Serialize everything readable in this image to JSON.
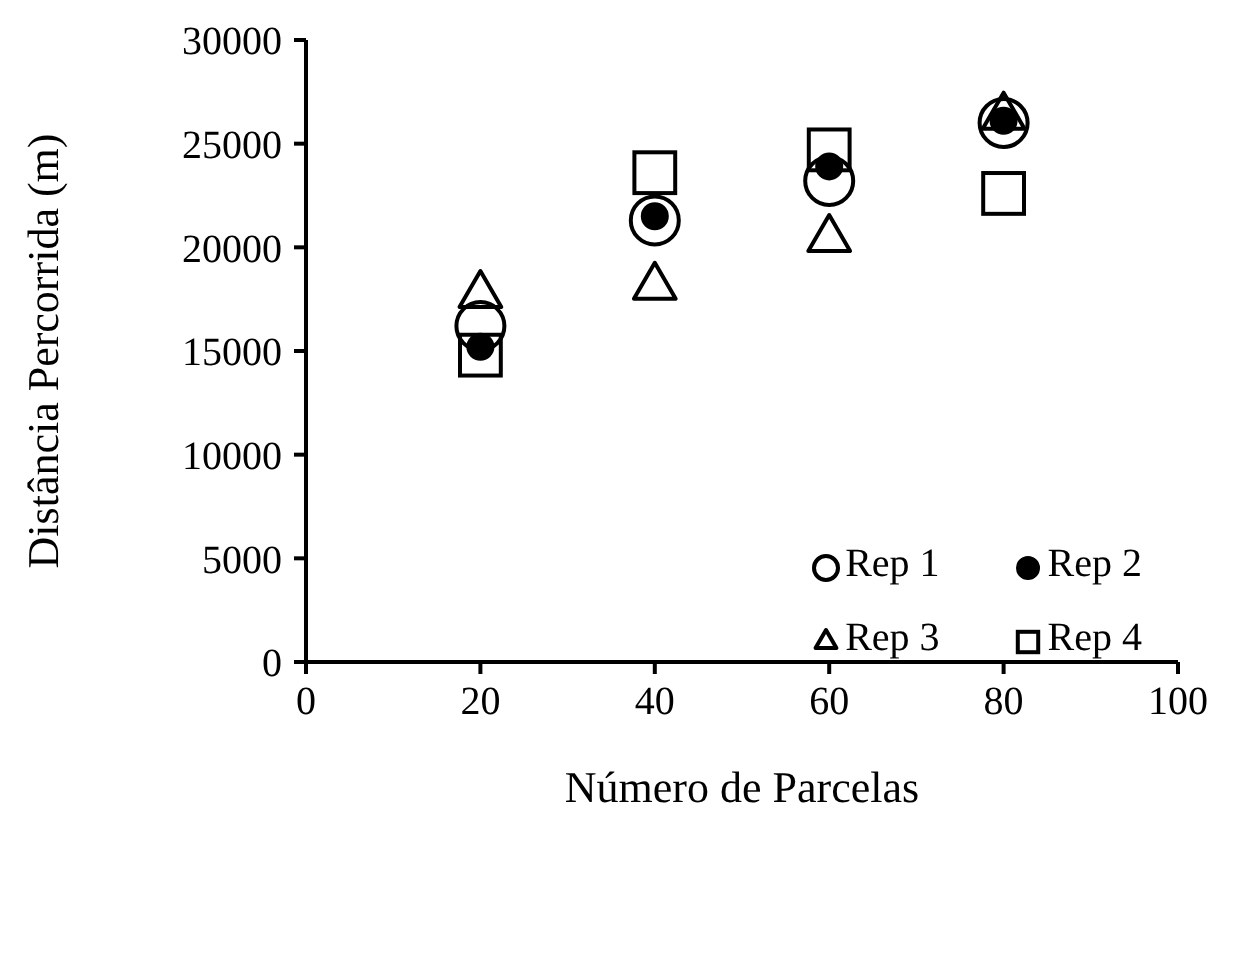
{
  "chart_data": {
    "type": "scatter",
    "xlabel": "Número de Parcelas",
    "ylabel": "Distância Percorrida (m)",
    "x": [
      20,
      40,
      60,
      80
    ],
    "series": [
      {
        "name": "Rep 1",
        "color": "#000000",
        "marker": "circle",
        "values": [
          16200,
          21300,
          23200,
          26000
        ]
      },
      {
        "name": "Rep 2",
        "color": "#000000",
        "marker": "circle",
        "values": [
          15200,
          21500,
          23900,
          26100
        ]
      },
      {
        "name": "Rep 3",
        "color": "#000000",
        "marker": "triangle",
        "values": [
          17700,
          18100,
          20400,
          26300
        ]
      },
      {
        "name": "Rep 4",
        "color": "#000000",
        "marker": "square",
        "values": [
          14800,
          23600,
          24700,
          22600
        ]
      }
    ],
    "xlim": [
      0,
      100
    ],
    "xticks": [
      0,
      20,
      40,
      60,
      80,
      100
    ],
    "ylim": [
      0,
      30000
    ],
    "yticks": [
      0,
      5000,
      10000,
      15000,
      20000,
      25000,
      30000
    ],
    "grid": false,
    "legend": "bottom right"
  }
}
